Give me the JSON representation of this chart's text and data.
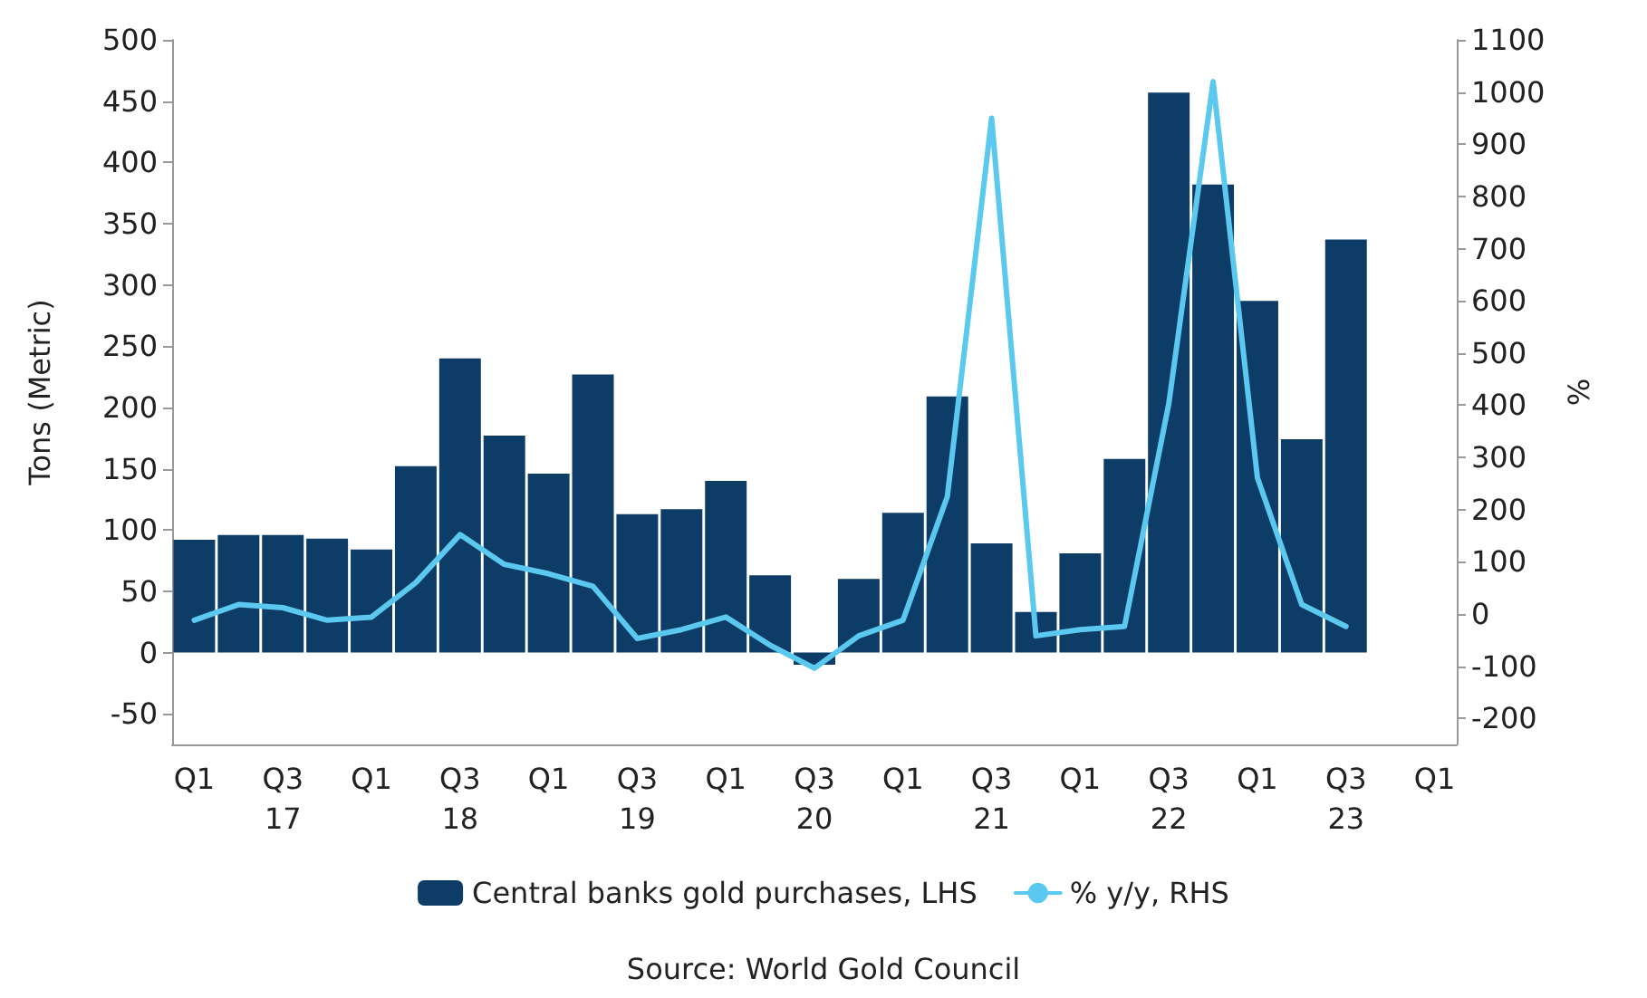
{
  "chart_data": {
    "type": "bar",
    "categories": [
      "Q1",
      null,
      "Q3\n17",
      null,
      "Q1",
      null,
      "Q3\n18",
      null,
      "Q1",
      null,
      "Q3\n19",
      null,
      "Q1",
      null,
      "Q3\n20",
      null,
      "Q1",
      null,
      "Q3\n21",
      null,
      "Q1",
      null,
      "Q3\n22",
      null,
      "Q1",
      null,
      "Q3\n23",
      null,
      "Q1"
    ],
    "series": [
      {
        "name": "Central banks gold purchases, LHS",
        "color": "#0d3c66",
        "values": [
          92,
          96,
          96,
          93,
          84,
          152,
          240,
          177,
          146,
          227,
          113,
          117,
          140,
          63,
          -10,
          60,
          114,
          209,
          89,
          33,
          81,
          158,
          457,
          382,
          287,
          174,
          337,
          null,
          null
        ]
      },
      {
        "name": "% y/y, RHS",
        "type": "line",
        "axis": "y2",
        "color": "#5bc8f0",
        "values": [
          -12,
          18,
          12,
          -12,
          -6,
          60,
          152,
          95,
          77,
          53,
          -47,
          -30,
          -6,
          -60,
          -104,
          -42,
          -12,
          225,
          950,
          -42,
          -30,
          -24,
          403,
          1020,
          261,
          18,
          -24,
          null,
          null
        ]
      }
    ],
    "ylabel": "Tons (Metric)",
    "y2label": "%",
    "ylim": [
      -75,
      500
    ],
    "yticks": [
      -50,
      0,
      50,
      100,
      150,
      200,
      250,
      300,
      350,
      400,
      450,
      500
    ],
    "y2lim": [
      -250,
      1100
    ],
    "y2ticks": [
      -200,
      -100,
      0,
      100,
      200,
      300,
      400,
      500,
      600,
      700,
      800,
      900,
      1000,
      1100
    ],
    "legend": "bottom",
    "grid": false,
    "marker": "none",
    "line_style": "solid",
    "annotations": [
      "Source: World Gold Council"
    ]
  }
}
